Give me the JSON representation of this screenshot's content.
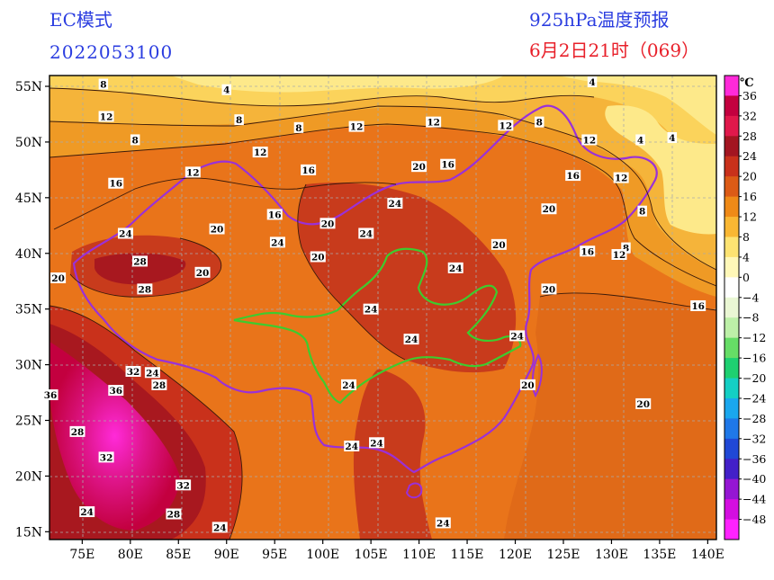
{
  "header": {
    "model": "EC模式",
    "run_time": "2022053100",
    "product": "925hPa温度预报",
    "valid_time": "6月2日21时（069）"
  },
  "map": {
    "lat_labels": [
      "55N",
      "50N",
      "45N",
      "40N",
      "35N",
      "30N",
      "25N",
      "20N",
      "15N"
    ],
    "lon_labels": [
      "75E",
      "80E",
      "85E",
      "90E",
      "95E",
      "100E",
      "105E",
      "110E",
      "115E",
      "120E",
      "125E",
      "130E",
      "135E",
      "140E"
    ],
    "contour_labels": [
      {
        "t": "8",
        "lon": 77.2,
        "lat": 55.2
      },
      {
        "t": "4",
        "lon": 90,
        "lat": 54.7
      },
      {
        "t": "4",
        "lon": 128,
        "lat": 55.4
      },
      {
        "t": "12",
        "lon": 77.5,
        "lat": 52.3
      },
      {
        "t": "8",
        "lon": 91.3,
        "lat": 52.0
      },
      {
        "t": "12",
        "lon": 103.5,
        "lat": 51.4
      },
      {
        "t": "8",
        "lon": 80.5,
        "lat": 50.2
      },
      {
        "t": "8",
        "lon": 97.5,
        "lat": 51.3
      },
      {
        "t": "12",
        "lon": 111.5,
        "lat": 51.8
      },
      {
        "t": "12",
        "lon": 119,
        "lat": 51.5
      },
      {
        "t": "8",
        "lon": 122.5,
        "lat": 51.8
      },
      {
        "t": "12",
        "lon": 127.7,
        "lat": 50.2
      },
      {
        "t": "4",
        "lon": 133,
        "lat": 50.2
      },
      {
        "t": "4",
        "lon": 136.3,
        "lat": 50.4
      },
      {
        "t": "12",
        "lon": 93.5,
        "lat": 49.1
      },
      {
        "t": "12",
        "lon": 86.5,
        "lat": 47.3
      },
      {
        "t": "16",
        "lon": 98.5,
        "lat": 47.5
      },
      {
        "t": "20",
        "lon": 110,
        "lat": 47.8
      },
      {
        "t": "16",
        "lon": 113,
        "lat": 48.0
      },
      {
        "t": "16",
        "lon": 78.5,
        "lat": 46.3
      },
      {
        "t": "16",
        "lon": 126,
        "lat": 47.0
      },
      {
        "t": "12",
        "lon": 131,
        "lat": 46.8
      },
      {
        "t": "20",
        "lon": 123.5,
        "lat": 44.0
      },
      {
        "t": "24",
        "lon": 107.5,
        "lat": 44.5
      },
      {
        "t": "8",
        "lon": 133.2,
        "lat": 43.8
      },
      {
        "t": "16",
        "lon": 95,
        "lat": 43.5
      },
      {
        "t": "20",
        "lon": 100.5,
        "lat": 42.7
      },
      {
        "t": "24",
        "lon": 79.5,
        "lat": 41.8
      },
      {
        "t": "20",
        "lon": 89,
        "lat": 42.2
      },
      {
        "t": "24",
        "lon": 104.5,
        "lat": 41.8
      },
      {
        "t": "24",
        "lon": 95.3,
        "lat": 41.0
      },
      {
        "t": "20",
        "lon": 118.3,
        "lat": 40.8
      },
      {
        "t": "16",
        "lon": 127.5,
        "lat": 40.2
      },
      {
        "t": "8",
        "lon": 131.5,
        "lat": 40.5
      },
      {
        "t": "12",
        "lon": 130.8,
        "lat": 39.9
      },
      {
        "t": "20",
        "lon": 99.5,
        "lat": 39.7
      },
      {
        "t": "28",
        "lon": 81,
        "lat": 39.3
      },
      {
        "t": "24",
        "lon": 113.8,
        "lat": 38.7
      },
      {
        "t": "20",
        "lon": 72.5,
        "lat": 37.8
      },
      {
        "t": "20",
        "lon": 87.5,
        "lat": 38.3
      },
      {
        "t": "28",
        "lon": 81.5,
        "lat": 36.8
      },
      {
        "t": "20",
        "lon": 123.5,
        "lat": 36.8
      },
      {
        "t": "16",
        "lon": 139,
        "lat": 35.3
      },
      {
        "t": "24",
        "lon": 105,
        "lat": 35.0
      },
      {
        "t": "24",
        "lon": 109.2,
        "lat": 32.3
      },
      {
        "t": "24",
        "lon": 120.2,
        "lat": 32.6
      },
      {
        "t": "32",
        "lon": 80.3,
        "lat": 29.4
      },
      {
        "t": "24",
        "lon": 82.3,
        "lat": 29.3
      },
      {
        "t": "28",
        "lon": 83,
        "lat": 28.2
      },
      {
        "t": "36",
        "lon": 78.5,
        "lat": 27.7
      },
      {
        "t": "36",
        "lon": 71.7,
        "lat": 27.3
      },
      {
        "t": "24",
        "lon": 102.7,
        "lat": 28.2
      },
      {
        "t": "20",
        "lon": 121.3,
        "lat": 28.2
      },
      {
        "t": "20",
        "lon": 133.3,
        "lat": 26.5
      },
      {
        "t": "28",
        "lon": 74.5,
        "lat": 24.0
      },
      {
        "t": "32",
        "lon": 77.5,
        "lat": 21.7
      },
      {
        "t": "24",
        "lon": 103,
        "lat": 22.7
      },
      {
        "t": "24",
        "lon": 105.6,
        "lat": 23.0
      },
      {
        "t": "32",
        "lon": 85.5,
        "lat": 19.2
      },
      {
        "t": "24",
        "lon": 75.5,
        "lat": 16.8
      },
      {
        "t": "28",
        "lon": 84.5,
        "lat": 16.6
      },
      {
        "t": "24",
        "lon": 89.3,
        "lat": 15.4
      },
      {
        "t": "24",
        "lon": 112.5,
        "lat": 15.8
      }
    ]
  },
  "colorbar": {
    "unit": "℃",
    "labels": [
      "36",
      "32",
      "28",
      "24",
      "20",
      "16",
      "12",
      "8",
      "4",
      "0",
      "−4",
      "−8",
      "−12",
      "−16",
      "−20",
      "−24",
      "−28",
      "−32",
      "−36",
      "−40",
      "−44",
      "−48"
    ],
    "colors": [
      "#ff2ad9",
      "#c3003f",
      "#e0184b",
      "#a31521",
      "#c9311b",
      "#dc5b16",
      "#ef8a17",
      "#f9b733",
      "#fde372",
      "#fff8b8",
      "#ffffff",
      "#eaf7d4",
      "#bdf0a8",
      "#66dd66",
      "#1ed071",
      "#14cfc4",
      "#1aa7ee",
      "#1f78e8",
      "#2048d6",
      "#4320c8",
      "#9516d3",
      "#d40ee0",
      "#ff22ff"
    ]
  }
}
